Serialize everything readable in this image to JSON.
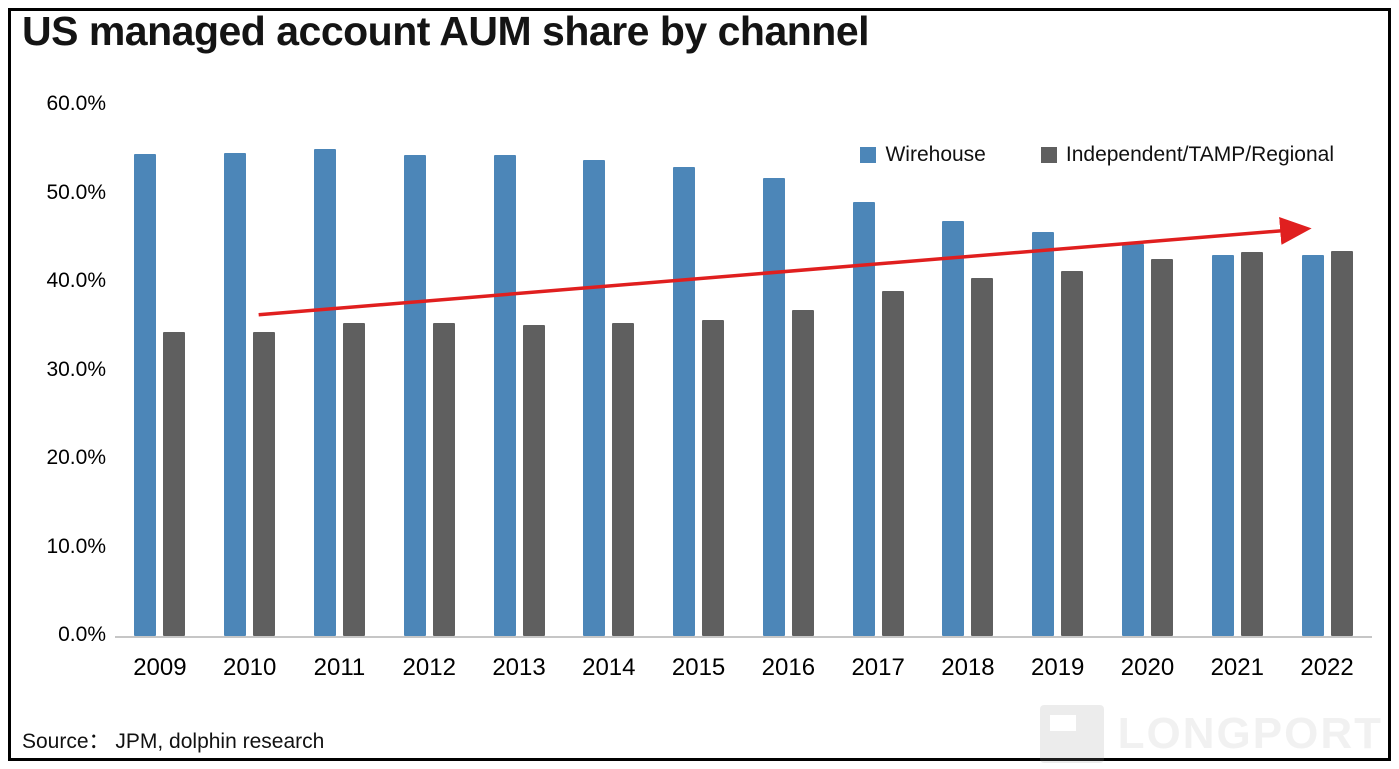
{
  "title": "US managed account AUM share by channel",
  "source": "Source： JPM, dolphin research",
  "watermark": "LONGPORT",
  "colors": {
    "wirehouse": "#4c86b8",
    "independent": "#5f5f5f",
    "arrow": "#e01f1f",
    "axis_line": "#c6c6c6"
  },
  "chart_data": {
    "type": "bar",
    "title": "US managed account AUM share by channel",
    "categories": [
      2009,
      2010,
      2011,
      2012,
      2013,
      2014,
      2015,
      2016,
      2017,
      2018,
      2019,
      2020,
      2021,
      2022
    ],
    "series": [
      {
        "name": "Wirehouse",
        "color": "#4c86b8",
        "values": [
          54.5,
          54.6,
          55.0,
          54.4,
          54.3,
          53.8,
          53.0,
          51.7,
          49.0,
          46.9,
          45.6,
          44.3,
          43.0,
          43.0
        ]
      },
      {
        "name": "Independent/TAMP/Regional",
        "color": "#5f5f5f",
        "values": [
          34.4,
          34.4,
          35.4,
          35.4,
          35.1,
          35.4,
          35.7,
          36.8,
          39.0,
          40.4,
          41.2,
          42.6,
          43.4,
          43.5
        ]
      }
    ],
    "ylim": [
      0,
      60
    ],
    "yticks": [
      "0.0%",
      "10.0%",
      "20.0%",
      "30.0%",
      "40.0%",
      "50.0%",
      "60.0%"
    ],
    "grid": false,
    "legend_position": "top-right",
    "annotation_arrow": {
      "from": {
        "year": 2010.1,
        "value": 36.3
      },
      "to": {
        "year": 2021.75,
        "value": 46.0
      }
    }
  }
}
